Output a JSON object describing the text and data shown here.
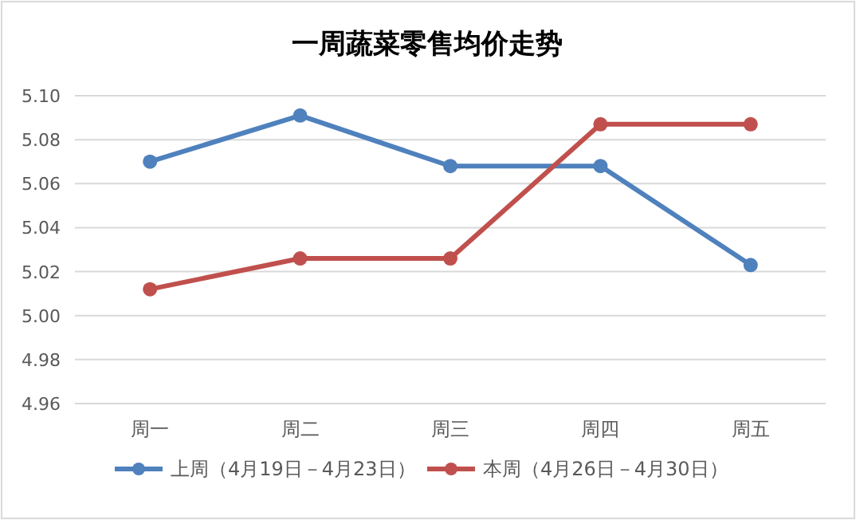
{
  "chart_data": {
    "type": "line",
    "title": "一周蔬菜零售均价走势",
    "categories": [
      "周一",
      "周二",
      "周三",
      "周四",
      "周五"
    ],
    "series": [
      {
        "name": "上周（4月19日－4月23日）",
        "color": "#4f81bd",
        "values": [
          5.07,
          5.091,
          5.068,
          5.068,
          5.023
        ]
      },
      {
        "name": "本周（4月26日－4月30日）",
        "color": "#c0504d",
        "values": [
          5.012,
          5.026,
          5.026,
          5.087,
          5.087
        ]
      }
    ],
    "ylim": [
      4.96,
      5.1
    ],
    "yticks": [
      4.96,
      4.98,
      {
        "value": 5,
        "label": "5.00"
      },
      5.02,
      5.04,
      5.06,
      5.08,
      {
        "value": 5.1,
        "label": "5.10"
      }
    ],
    "grid": "y",
    "legend": "bottom",
    "marker": "circle",
    "line_style": "solid"
  }
}
